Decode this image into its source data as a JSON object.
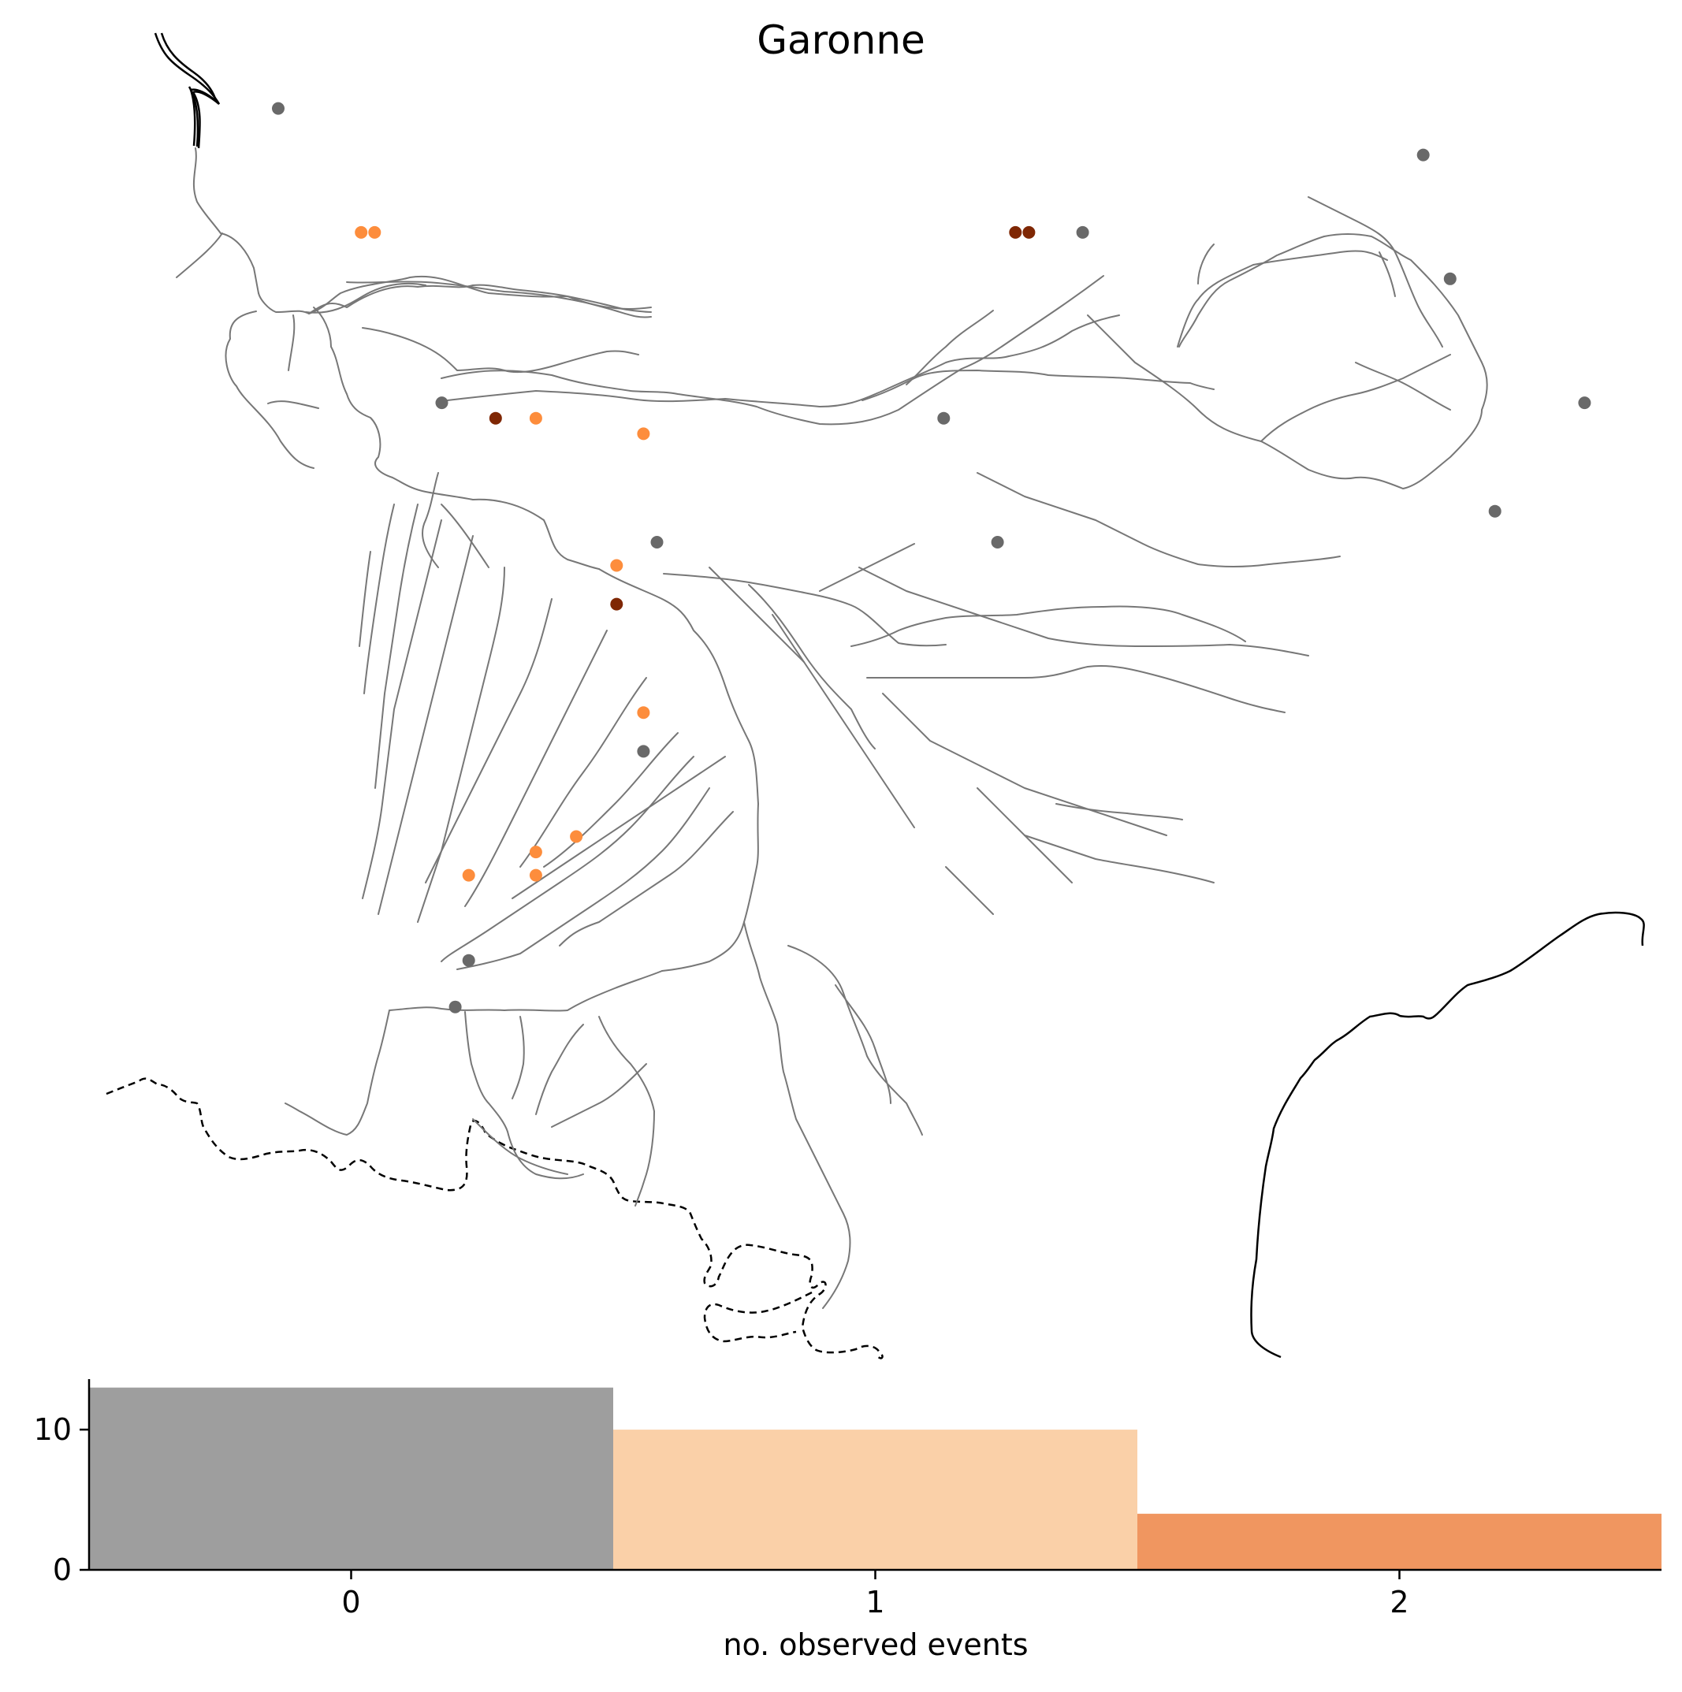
{
  "title": "Garonne",
  "colors": {
    "0": "#9e9e9e",
    "1": "#fad0a8",
    "2": "#f09660",
    "river": "#777777",
    "station_0": "#696969",
    "station_1": "#fd8d3c",
    "station_2": "#7f2704"
  },
  "map": {
    "stations": [
      {
        "lon": -0.455,
        "lat": 44.91,
        "events": 0
      },
      {
        "lon": -0.27,
        "lat": 44.75,
        "events": 1
      },
      {
        "lon": -0.24,
        "lat": 44.75,
        "events": 1
      },
      {
        "lon": 1.19,
        "lat": 44.75,
        "events": 2
      },
      {
        "lon": 1.22,
        "lat": 44.75,
        "events": 2
      },
      {
        "lon": 1.34,
        "lat": 44.75,
        "events": 0
      },
      {
        "lon": 2.1,
        "lat": 44.85,
        "events": 0
      },
      {
        "lon": 2.16,
        "lat": 44.69,
        "events": 0
      },
      {
        "lon": -0.09,
        "lat": 44.53,
        "events": 0
      },
      {
        "lon": 0.03,
        "lat": 44.51,
        "events": 2
      },
      {
        "lon": 0.12,
        "lat": 44.51,
        "events": 1
      },
      {
        "lon": 0.36,
        "lat": 44.49,
        "events": 1
      },
      {
        "lon": 1.03,
        "lat": 44.51,
        "events": 0
      },
      {
        "lon": 2.46,
        "lat": 44.53,
        "events": 0
      },
      {
        "lon": 2.26,
        "lat": 44.39,
        "events": 0
      },
      {
        "lon": 0.39,
        "lat": 44.35,
        "events": 0
      },
      {
        "lon": 1.15,
        "lat": 44.35,
        "events": 0
      },
      {
        "lon": 0.3,
        "lat": 44.32,
        "events": 1
      },
      {
        "lon": 0.3,
        "lat": 44.27,
        "events": 2
      },
      {
        "lon": 0.36,
        "lat": 44.13,
        "events": 1
      },
      {
        "lon": 0.36,
        "lat": 44.08,
        "events": 0
      },
      {
        "lon": 0.21,
        "lat": 43.97,
        "events": 1
      },
      {
        "lon": 0.12,
        "lat": 43.95,
        "events": 1
      },
      {
        "lon": 0.12,
        "lat": 43.92,
        "events": 1
      },
      {
        "lon": -0.03,
        "lat": 43.92,
        "events": 1
      },
      {
        "lon": -0.03,
        "lat": 43.81,
        "events": 0
      },
      {
        "lon": -0.06,
        "lat": 43.75,
        "events": 0
      }
    ]
  },
  "chart_data": {
    "type": "bar",
    "categories": [
      "0",
      "1",
      "2"
    ],
    "values": [
      13,
      10,
      4
    ],
    "colors": [
      "#9e9e9e",
      "#fad0a8",
      "#f09660"
    ],
    "xlabel": "no. observed events",
    "ylabel": "",
    "ylim": [
      0,
      13.6
    ],
    "yticks": [
      0,
      10
    ],
    "grid": false
  }
}
